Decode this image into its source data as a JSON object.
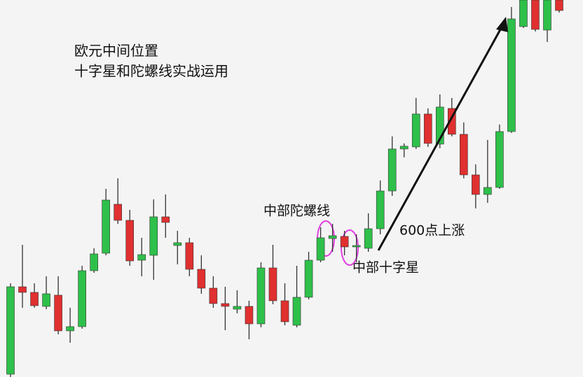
{
  "chart_data": {
    "type": "candlestick",
    "title": [
      "欧元中间位置",
      "十字星和陀螺线实战运用"
    ],
    "annotations": [
      "中部陀螺线",
      "600点上涨",
      "中部十字星"
    ],
    "ylim": [
      0,
      539
    ],
    "up_color": "#2ec04a",
    "down_color": "#e03030",
    "open": [
      4,
      129,
      121,
      101,
      117,
      66,
      72,
      152,
      177,
      247,
      224,
      167,
      174,
      229,
      188,
      192,
      154,
      127,
      105,
      97,
      101,
      76,
      156,
      109,
      74,
      114,
      167,
      198,
      201,
      186,
      184,
      212,
      266,
      326,
      329,
      376,
      333,
      384,
      347,
      289,
      261,
      271,
      351,
      501,
      539,
      496,
      539
    ],
    "high": [
      134,
      189,
      134,
      144,
      144,
      99,
      159,
      184,
      269,
      284,
      239,
      199,
      254,
      261,
      209,
      199,
      174,
      144,
      129,
      124,
      109,
      164,
      189,
      134,
      159,
      179,
      214,
      219,
      209,
      204,
      234,
      281,
      344,
      334,
      399,
      384,
      404,
      399,
      364,
      304,
      339,
      361,
      529,
      539,
      539,
      539,
      539
    ],
    "low": [
      0,
      99,
      99,
      97,
      61,
      49,
      69,
      149,
      174,
      219,
      159,
      144,
      139,
      199,
      161,
      144,
      119,
      99,
      67,
      91,
      54,
      71,
      104,
      74,
      71,
      111,
      164,
      179,
      174,
      164,
      179,
      204,
      259,
      314,
      326,
      329,
      327,
      344,
      284,
      241,
      249,
      269,
      349,
      499,
      494,
      479,
      521
    ],
    "close": [
      129,
      121,
      102,
      119,
      66,
      72,
      152,
      176,
      253,
      224,
      166,
      175,
      229,
      221,
      192,
      154,
      127,
      105,
      101,
      101,
      76,
      156,
      109,
      79,
      114,
      167,
      199,
      202,
      186,
      188,
      212,
      266,
      326,
      330,
      376,
      334,
      386,
      347,
      289,
      261,
      271,
      351,
      512,
      539,
      497,
      539,
      524
    ]
  }
}
